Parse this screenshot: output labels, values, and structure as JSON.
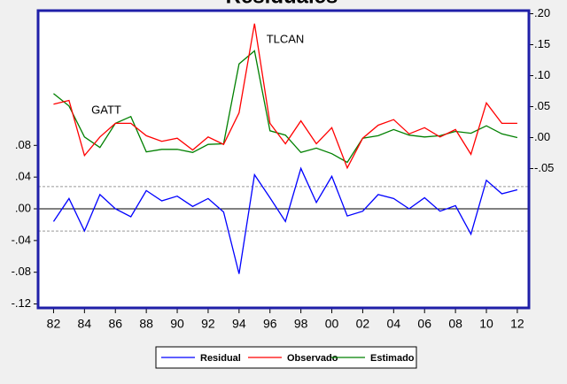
{
  "chart_data": {
    "type": "line",
    "title": "Residuales",
    "x": [
      1982,
      1983,
      1984,
      1985,
      1986,
      1987,
      1988,
      1989,
      1990,
      1991,
      1992,
      1993,
      1994,
      1995,
      1996,
      1997,
      1998,
      1999,
      2000,
      2001,
      2002,
      2003,
      2004,
      2005,
      2006,
      2007,
      2008,
      2009,
      2010,
      2011,
      2012
    ],
    "series": [
      {
        "name": "Residual",
        "color": "#0000ff",
        "axis": "y",
        "values": [
          -0.016,
          0.013,
          -0.028,
          0.018,
          0.0,
          -0.01,
          0.023,
          0.01,
          0.016,
          0.003,
          0.013,
          -0.004,
          -0.082,
          0.043,
          0.014,
          -0.016,
          0.051,
          0.008,
          0.041,
          -0.009,
          -0.003,
          0.018,
          0.013,
          0.0,
          0.014,
          -0.003,
          0.004,
          -0.032,
          0.036,
          0.019,
          0.024
        ]
      },
      {
        "name": "Observado",
        "color": "#ff0000",
        "axis": "y2",
        "values": [
          0.054,
          0.06,
          -0.029,
          0.001,
          0.023,
          0.023,
          0.003,
          -0.006,
          -0.001,
          -0.02,
          0.001,
          -0.011,
          0.04,
          0.184,
          0.023,
          -0.01,
          0.027,
          -0.01,
          0.016,
          -0.049,
          -0.001,
          0.02,
          0.029,
          0.006,
          0.016,
          0.001,
          0.013,
          -0.027,
          0.056,
          0.023,
          0.023
        ]
      },
      {
        "name": "Estimado",
        "color": "#008000",
        "axis": "y2",
        "values": [
          0.071,
          0.051,
          0.001,
          -0.016,
          0.023,
          0.034,
          -0.023,
          -0.019,
          -0.019,
          -0.024,
          -0.011,
          -0.01,
          0.119,
          0.14,
          0.011,
          0.004,
          -0.024,
          -0.017,
          -0.026,
          -0.04,
          -0.001,
          0.003,
          0.013,
          0.004,
          0.001,
          0.003,
          0.01,
          0.007,
          0.019,
          0.006,
          0.0
        ]
      }
    ],
    "xlim": [
      1981,
      2012.75
    ],
    "xticks": [
      {
        "value": 1982,
        "label": "82"
      },
      {
        "value": 1984,
        "label": "84"
      },
      {
        "value": 1986,
        "label": "86"
      },
      {
        "value": 1988,
        "label": "88"
      },
      {
        "value": 1990,
        "label": "90"
      },
      {
        "value": 1992,
        "label": "92"
      },
      {
        "value": 1994,
        "label": "94"
      },
      {
        "value": 1996,
        "label": "96"
      },
      {
        "value": 1998,
        "label": "98"
      },
      {
        "value": 2000,
        "label": "00"
      },
      {
        "value": 2002,
        "label": "02"
      },
      {
        "value": 2004,
        "label": "04"
      },
      {
        "value": 2006,
        "label": "06"
      },
      {
        "value": 2008,
        "label": "08"
      },
      {
        "value": 2010,
        "label": "10"
      },
      {
        "value": 2012,
        "label": "12"
      }
    ],
    "ylim": [
      -0.125,
      0.25
    ],
    "yticks": [
      {
        "value": -0.12,
        "label": "-.12"
      },
      {
        "value": -0.08,
        "label": "-.08"
      },
      {
        "value": -0.04,
        "label": "-.04"
      },
      {
        "value": 0,
        "label": ".00"
      },
      {
        "value": 0.04,
        "label": ".04"
      },
      {
        "value": 0.08,
        "label": ".08"
      }
    ],
    "y2lim": [
      -0.275,
      0.205
    ],
    "y2ticks": [
      {
        "value": -0.05,
        "label": "-.05"
      },
      {
        "value": 0,
        "label": ".00"
      },
      {
        "value": 0.05,
        "label": ".05"
      },
      {
        "value": 0.1,
        "label": ".10"
      },
      {
        "value": 0.15,
        "label": ".15"
      },
      {
        "value": 0.2,
        "label": ".20"
      }
    ],
    "reference_lines": [
      {
        "value": 0,
        "style": "solid"
      },
      {
        "value": 0.028,
        "style": "dashed"
      },
      {
        "value": -0.028,
        "style": "dashed"
      }
    ],
    "annotations": [
      "GATT",
      "TLCAN"
    ],
    "legend": "bottom"
  }
}
